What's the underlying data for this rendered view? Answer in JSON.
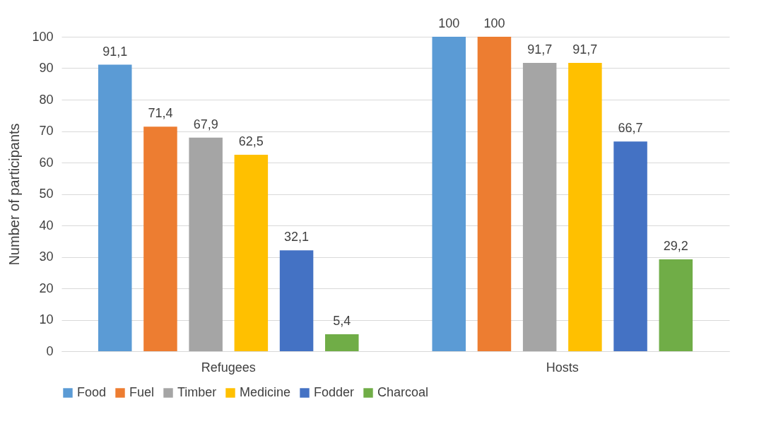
{
  "chart_data": {
    "type": "bar",
    "ylabel": "Number of participants",
    "categories": [
      "Refugees",
      "Hosts"
    ],
    "series": [
      {
        "name": "Food",
        "color": "#5b9bd5",
        "values": [
          91.1,
          100
        ],
        "value_labels": [
          "91,1",
          "100"
        ]
      },
      {
        "name": "Fuel",
        "color": "#ed7d31",
        "values": [
          71.4,
          100
        ],
        "value_labels": [
          "71,4",
          "100"
        ]
      },
      {
        "name": "Timber",
        "color": "#a5a5a5",
        "values": [
          67.9,
          91.7
        ],
        "value_labels": [
          "67,9",
          "91,7"
        ]
      },
      {
        "name": "Medicine",
        "color": "#ffc000",
        "values": [
          62.5,
          91.7
        ],
        "value_labels": [
          "62,5",
          "91,7"
        ]
      },
      {
        "name": "Fodder",
        "color": "#4472c4",
        "values": [
          32.1,
          66.7
        ],
        "value_labels": [
          "32,1",
          "66,7"
        ]
      },
      {
        "name": "Charcoal",
        "color": "#70ad47",
        "values": [
          5.4,
          29.2
        ],
        "value_labels": [
          "5,4",
          "29,2"
        ]
      }
    ],
    "ylim": [
      0,
      100
    ],
    "yticks": [
      0,
      10,
      20,
      30,
      40,
      50,
      60,
      70,
      80,
      90,
      100
    ],
    "grid": "y",
    "legend": "bottom"
  }
}
